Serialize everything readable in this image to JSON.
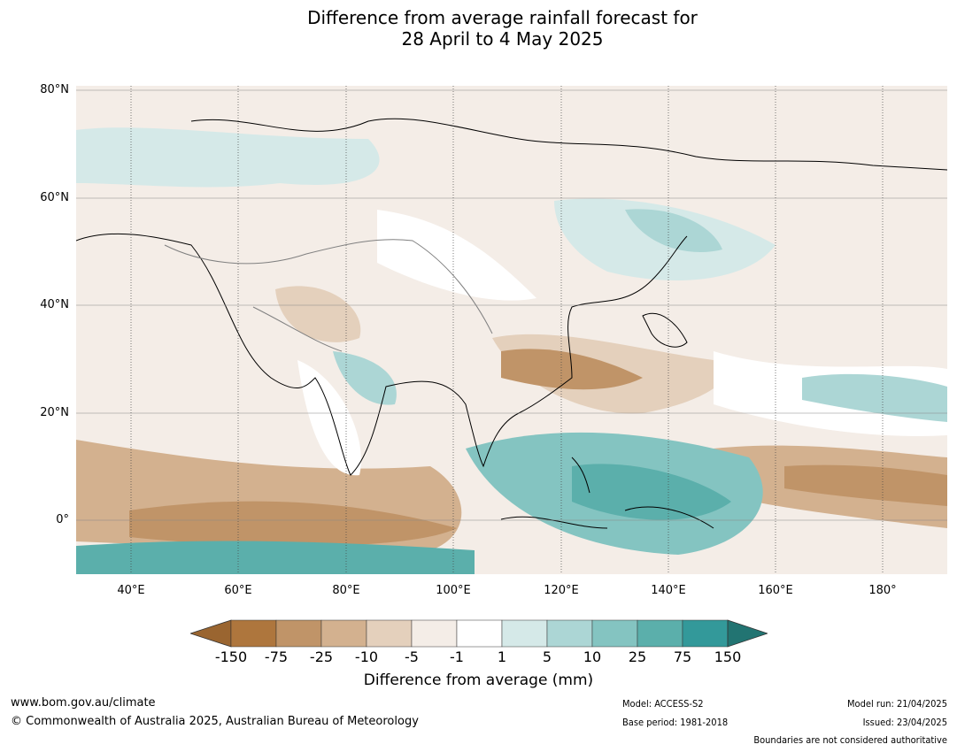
{
  "title_line1": "Difference from average rainfall forecast for",
  "title_line2": "28 April to 4 May 2025",
  "axes": {
    "lat_labels": [
      "80°N",
      "60°N",
      "40°N",
      "20°N",
      "0°"
    ],
    "lon_labels": [
      "40°E",
      "60°E",
      "80°E",
      "100°E",
      "120°E",
      "140°E",
      "160°E",
      "180°"
    ]
  },
  "legend": {
    "title": "Difference from average (mm)",
    "ticks": [
      "-150",
      "-75",
      "-25",
      "-10",
      "-5",
      "-1",
      "1",
      "5",
      "10",
      "25",
      "75",
      "150"
    ],
    "colors": [
      "#9a6530",
      "#ae763d",
      "#c09468",
      "#d3b18f",
      "#e4d0bc",
      "#f4ede7",
      "#ffffff",
      "#d5e9e8",
      "#acd6d5",
      "#84c4c1",
      "#5bafab",
      "#33999a",
      "#227472"
    ]
  },
  "footer": {
    "website": "www.bom.gov.au/climate",
    "copyright": "© Commonwealth of Australia 2025, Australian Bureau of Meteorology",
    "model": "Model: ACCESS-S2",
    "base_period": "Base period: 1981-2018",
    "model_run": "Model run: 21/04/2025",
    "issued": "Issued: 23/04/2025",
    "disclaimer": "Boundaries are not considered authoritative"
  }
}
